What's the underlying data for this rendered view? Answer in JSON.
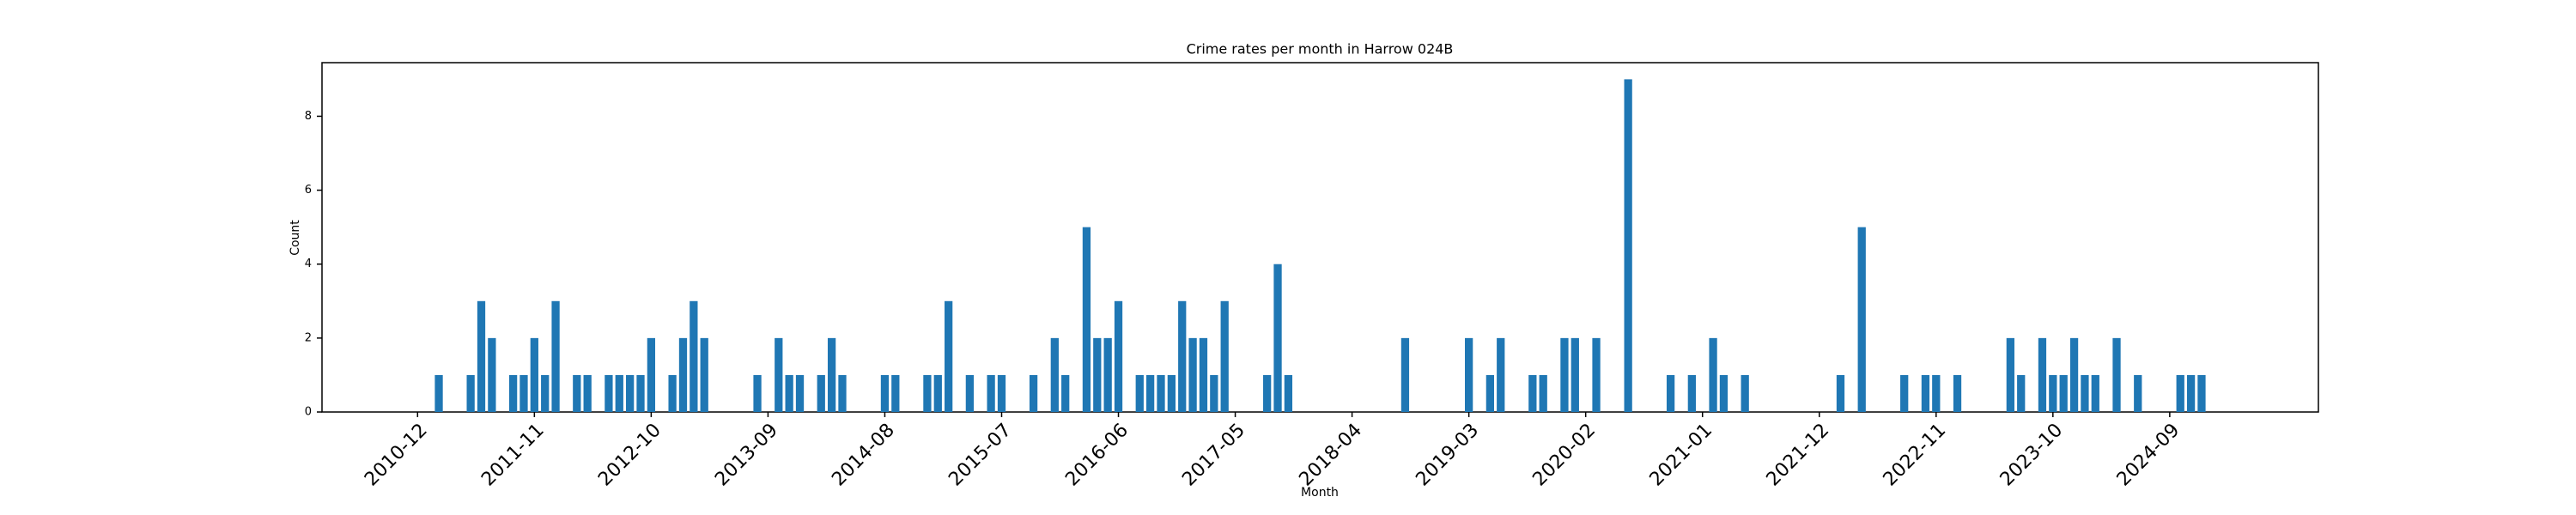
{
  "chart_data": {
    "type": "bar",
    "title": "Crime rates per month in Harrow 024B",
    "xlabel": "Month",
    "ylabel": "Count",
    "color": "#1f77b4",
    "x": [
      "2011-02",
      "2011-05",
      "2011-06",
      "2011-07",
      "2011-09",
      "2011-10",
      "2011-11",
      "2011-12",
      "2012-01",
      "2012-03",
      "2012-04",
      "2012-06",
      "2012-07",
      "2012-08",
      "2012-09",
      "2012-10",
      "2012-12",
      "2013-01",
      "2013-02",
      "2013-03",
      "2013-08",
      "2013-10",
      "2013-11",
      "2013-12",
      "2014-02",
      "2014-03",
      "2014-04",
      "2014-08",
      "2014-09",
      "2014-12",
      "2015-01",
      "2015-02",
      "2015-04",
      "2015-06",
      "2015-07",
      "2015-10",
      "2015-12",
      "2016-01",
      "2016-03",
      "2016-04",
      "2016-05",
      "2016-06",
      "2016-08",
      "2016-09",
      "2016-10",
      "2016-11",
      "2016-12",
      "2017-01",
      "2017-02",
      "2017-03",
      "2017-04",
      "2017-08",
      "2017-09",
      "2017-10",
      "2018-09",
      "2019-03",
      "2019-05",
      "2019-06",
      "2019-09",
      "2019-10",
      "2019-12",
      "2020-01",
      "2020-03",
      "2020-06",
      "2020-10",
      "2020-12",
      "2021-02",
      "2021-03",
      "2021-05",
      "2022-02",
      "2022-04",
      "2022-08",
      "2022-10",
      "2022-11",
      "2023-01",
      "2023-06",
      "2023-07",
      "2023-09",
      "2023-10",
      "2023-11",
      "2023-12",
      "2024-01",
      "2024-02",
      "2024-04",
      "2024-06",
      "2024-10",
      "2024-11",
      "2024-12"
    ],
    "values": [
      1,
      1,
      3,
      2,
      1,
      1,
      2,
      1,
      3,
      1,
      1,
      1,
      1,
      1,
      1,
      2,
      1,
      2,
      3,
      2,
      1,
      2,
      1,
      1,
      1,
      2,
      1,
      1,
      1,
      1,
      1,
      3,
      1,
      1,
      1,
      1,
      2,
      1,
      5,
      2,
      2,
      3,
      1,
      1,
      1,
      1,
      3,
      2,
      2,
      1,
      3,
      1,
      4,
      1,
      2,
      2,
      1,
      2,
      1,
      1,
      2,
      2,
      2,
      9,
      1,
      1,
      2,
      1,
      1,
      1,
      5,
      1,
      1,
      1,
      1,
      2,
      1,
      2,
      1,
      1,
      2,
      1,
      1,
      2,
      1,
      1,
      1,
      1
    ],
    "xlim": [
      "2010-03",
      "2025-11"
    ],
    "xticks": [
      "2010-12",
      "2011-11",
      "2012-10",
      "2013-09",
      "2014-08",
      "2015-07",
      "2016-06",
      "2017-05",
      "2018-04",
      "2019-03",
      "2020-02",
      "2021-01",
      "2021-12",
      "2022-11",
      "2023-10",
      "2024-09"
    ],
    "ylim": [
      0,
      9.45
    ],
    "yticks": [
      0,
      2,
      4,
      6,
      8
    ]
  }
}
